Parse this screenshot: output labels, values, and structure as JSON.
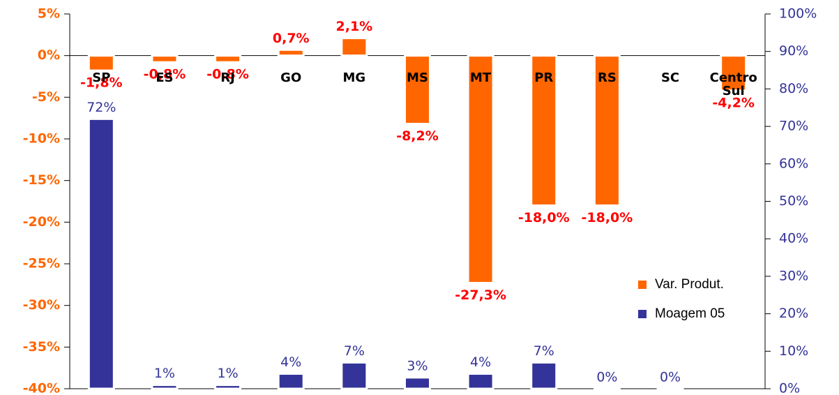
{
  "chart_data": {
    "type": "bar",
    "categories": [
      "SP",
      "ES",
      "RJ",
      "GO",
      "MG",
      "MS",
      "MT",
      "PR",
      "RS",
      "SC",
      "Centro Sul"
    ],
    "series": [
      {
        "name": "Var. Produt.",
        "color": "#ff6600",
        "axis": "y",
        "values": [
          -1.8,
          -0.8,
          -0.8,
          0.7,
          2.1,
          -8.2,
          -27.3,
          -18.0,
          -18.0,
          null,
          -4.2
        ],
        "value_labels": [
          "-1,8%",
          "-0,8%",
          "-0,8%",
          "0,7%",
          "2,1%",
          "-8,2%",
          "-27,3%",
          "-18,0%",
          "-18,0%",
          null,
          "-4,2%"
        ]
      },
      {
        "name": "Moagem 05",
        "color": "#333399",
        "axis": "y2",
        "values": [
          72,
          1,
          1,
          4,
          7,
          3,
          4,
          7,
          0,
          0,
          null
        ],
        "value_labels": [
          "72%",
          "1%",
          "1%",
          "4%",
          "7%",
          "3%",
          "4%",
          "7%",
          "0%",
          "0%",
          null
        ]
      }
    ],
    "ylim": [
      -40,
      5
    ],
    "yticks": [
      {
        "value": 5,
        "label": "5%"
      },
      {
        "value": 0,
        "label": "0%"
      },
      {
        "value": -5,
        "label": "-5%"
      },
      {
        "value": -10,
        "label": "-10%"
      },
      {
        "value": -15,
        "label": "-15%"
      },
      {
        "value": -20,
        "label": "-20%"
      },
      {
        "value": -25,
        "label": "-25%"
      },
      {
        "value": -30,
        "label": "-30%"
      },
      {
        "value": -35,
        "label": "-35%"
      },
      {
        "value": -40,
        "label": "-40%"
      }
    ],
    "y2lim": [
      0,
      100
    ],
    "y2ticks": [
      {
        "value": 0,
        "label": "0%"
      },
      {
        "value": 10,
        "label": "10%"
      },
      {
        "value": 20,
        "label": "20%"
      },
      {
        "value": 30,
        "label": "30%"
      },
      {
        "value": 40,
        "label": "40%"
      },
      {
        "value": 50,
        "label": "50%"
      },
      {
        "value": 60,
        "label": "60%"
      },
      {
        "value": 70,
        "label": "70%"
      },
      {
        "value": 80,
        "label": "80%"
      },
      {
        "value": 90,
        "label": "90%"
      },
      {
        "value": 100,
        "label": "100%"
      }
    ],
    "legend": "lower right",
    "grid": false
  }
}
